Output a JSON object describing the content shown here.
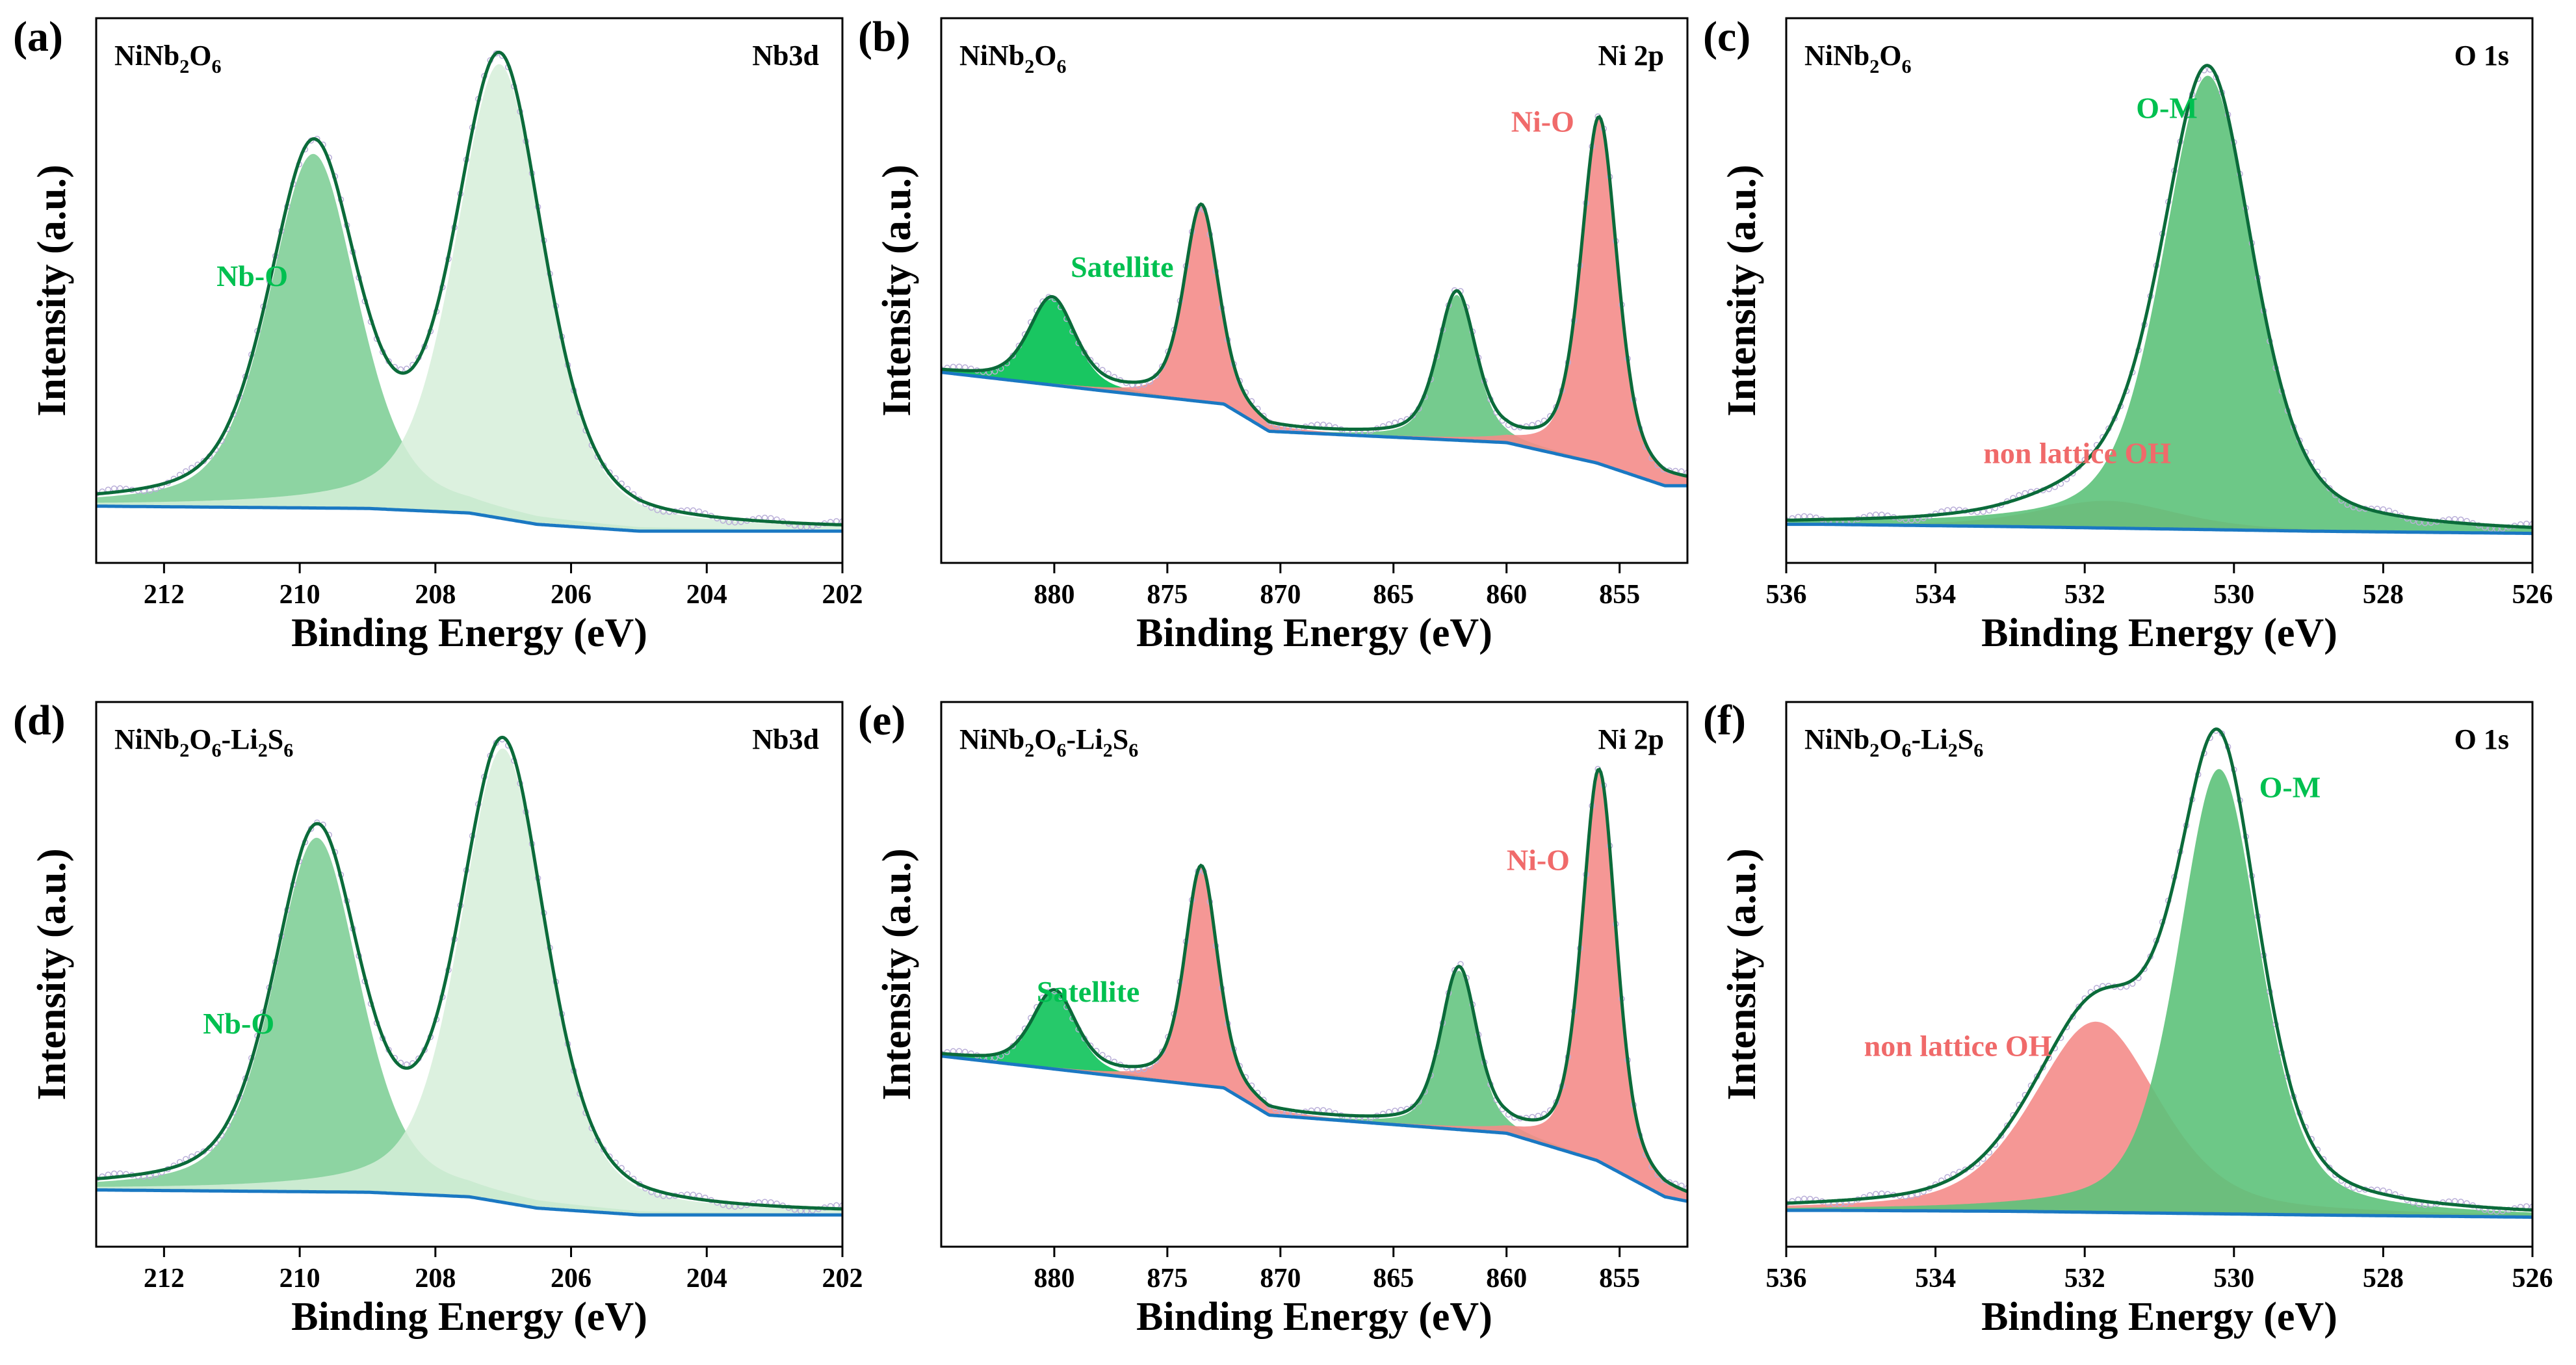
{
  "figure_title": "",
  "colors": {
    "green_dark": "#00C050",
    "green_mid": "#5DC27A",
    "green_light": "#D6EED9",
    "red_fill": "#F48C8A",
    "red_text": "#F06A6A",
    "envelope": "#0B6B3A",
    "baseline": "#1A78C2",
    "raw": "#B9AED8",
    "overlap": "#8E8A4A"
  },
  "chart_data": [
    {
      "panel": "(a)",
      "type": "line",
      "sample": {
        "base": "NiNb",
        "sub1": "2",
        "mid": "O",
        "sub2": "6",
        "tail": "",
        "sub3": ""
      },
      "region": "Nb3d",
      "xlabel": "Binding Energy (eV)",
      "ylabel": "Intensity (a.u.)",
      "xlim": [
        213,
        202
      ],
      "ylim": [
        -0.05,
        1.15
      ],
      "xticks": [
        212,
        210,
        208,
        206,
        204,
        202
      ],
      "xtick_labels": [
        "212",
        "210",
        "208",
        "206",
        "204",
        "202"
      ],
      "baseline": {
        "x": [
          213,
          209,
          207.5,
          206.5,
          205,
          202
        ],
        "y": [
          0.075,
          0.07,
          0.06,
          0.035,
          0.02,
          0.02
        ]
      },
      "peaks": [
        {
          "name": "Nb-O",
          "center": 209.8,
          "height": 0.78,
          "fwhm": 1.55,
          "color": "#5DC27A",
          "opacity": 0.7
        },
        {
          "name": "",
          "center": 207.05,
          "height": 1.0,
          "fwhm": 1.55,
          "color": "#D6EED9",
          "opacity": 0.85
        }
      ],
      "annotations": [
        {
          "text": "Nb-O",
          "x": 210.7,
          "y": 0.56,
          "color": "#00C050"
        }
      ]
    },
    {
      "panel": "(b)",
      "type": "line",
      "sample": {
        "base": "NiNb",
        "sub1": "2",
        "mid": "O",
        "sub2": "6",
        "tail": "",
        "sub3": ""
      },
      "region": "Ni 2p",
      "xlabel": "Binding Energy (eV)",
      "ylabel": "Intensity (a.u.)",
      "xlim": [
        885,
        852
      ],
      "ylim": [
        -0.05,
        1.15
      ],
      "xticks": [
        880,
        875,
        870,
        865,
        860,
        855
      ],
      "xtick_labels": [
        "880",
        "875",
        "870",
        "865",
        "860",
        "855"
      ],
      "baseline": {
        "x": [
          885,
          878,
          872.5,
          870.5,
          860,
          856,
          853,
          852
        ],
        "y": [
          0.37,
          0.33,
          0.3,
          0.24,
          0.215,
          0.17,
          0.12,
          0.12
        ]
      },
      "peaks": [
        {
          "name": "Satellite",
          "center": 880.1,
          "height": 0.19,
          "fwhm": 2.4,
          "color": "#00C050",
          "opacity": 0.9
        },
        {
          "name": "",
          "center": 873.5,
          "height": 0.43,
          "fwhm": 1.8,
          "color": "#F48C8A",
          "opacity": 0.9
        },
        {
          "name": "",
          "center": 862.2,
          "height": 0.32,
          "fwhm": 2.0,
          "color": "#5DC27A",
          "opacity": 0.85
        },
        {
          "name": "Ni-O",
          "center": 855.9,
          "height": 0.76,
          "fwhm": 1.9,
          "color": "#F48C8A",
          "opacity": 0.9
        }
      ],
      "annotations": [
        {
          "text": "Satellite",
          "x": 877,
          "y": 0.58,
          "color": "#00C050"
        },
        {
          "text": "Ni-O",
          "x": 858.4,
          "y": 0.9,
          "color": "#F06A6A"
        }
      ]
    },
    {
      "panel": "(c)",
      "type": "line",
      "sample": {
        "base": "NiNb",
        "sub1": "2",
        "mid": "O",
        "sub2": "6",
        "tail": "",
        "sub3": ""
      },
      "region": "O 1s",
      "xlabel": "Binding Energy (eV)",
      "ylabel": "Intensity (a.u.)",
      "xlim": [
        536,
        526
      ],
      "ylim": [
        -0.05,
        1.15
      ],
      "xticks": [
        536,
        534,
        532,
        530,
        528,
        526
      ],
      "xtick_labels": [
        "536",
        "534",
        "532",
        "530",
        "528",
        "526"
      ],
      "baseline": {
        "x": [
          535.5,
          533,
          531,
          529,
          526
        ],
        "y": [
          0.035,
          0.03,
          0.025,
          0.02,
          0.015
        ]
      },
      "peaks": [
        {
          "name": "non lattice OH",
          "center": 531.7,
          "height": 0.06,
          "fwhm": 2.2,
          "color": "#F48C8A",
          "opacity": 0.9
        },
        {
          "name": "O-M",
          "center": 530.35,
          "height": 1.0,
          "fwhm": 1.45,
          "color": "#5DC27A",
          "opacity": 0.9
        }
      ],
      "annotations": [
        {
          "text": "non lattice OH",
          "x": 532.1,
          "y": 0.17,
          "color": "#F06A6A"
        },
        {
          "text": "O-M",
          "x": 530.9,
          "y": 0.93,
          "color": "#00C050"
        }
      ]
    },
    {
      "panel": "(d)",
      "type": "line",
      "sample": {
        "base": "NiNb",
        "sub1": "2",
        "mid": "O",
        "sub2": "6",
        "tail": "-Li",
        "sub3": "2"
      },
      "sample_suffix": {
        "text": "S",
        "sub": "6"
      },
      "region": "Nb3d",
      "xlabel": "Binding Energy (eV)",
      "ylabel": "Intensity (a.u.)",
      "xlim": [
        213,
        202
      ],
      "ylim": [
        -0.05,
        1.15
      ],
      "xticks": [
        212,
        210,
        208,
        206,
        204,
        202
      ],
      "xtick_labels": [
        "212",
        "210",
        "208",
        "206",
        "204",
        "202"
      ],
      "baseline": {
        "x": [
          213,
          209,
          207.5,
          206.5,
          205,
          202
        ],
        "y": [
          0.075,
          0.07,
          0.06,
          0.035,
          0.02,
          0.02
        ]
      },
      "peaks": [
        {
          "name": "Nb-O",
          "center": 209.75,
          "height": 0.78,
          "fwhm": 1.5,
          "color": "#5DC27A",
          "opacity": 0.7
        },
        {
          "name": "",
          "center": 207.0,
          "height": 1.0,
          "fwhm": 1.5,
          "color": "#D6EED9",
          "opacity": 0.85
        }
      ],
      "annotations": [
        {
          "text": "Nb-O",
          "x": 210.9,
          "y": 0.42,
          "color": "#00C050"
        }
      ]
    },
    {
      "panel": "(e)",
      "type": "line",
      "sample": {
        "base": "NiNb",
        "sub1": "2",
        "mid": "O",
        "sub2": "6",
        "tail": "-Li",
        "sub3": "2"
      },
      "sample_suffix": {
        "text": "S",
        "sub": "6"
      },
      "region": "Ni 2p",
      "xlabel": "Binding Energy (eV)",
      "ylabel": "Intensity (a.u.)",
      "xlim": [
        885,
        852
      ],
      "ylim": [
        -0.05,
        1.15
      ],
      "xticks": [
        880,
        875,
        870,
        865,
        860,
        855
      ],
      "xtick_labels": [
        "880",
        "875",
        "870",
        "865",
        "860",
        "855"
      ],
      "baseline": {
        "x": [
          885,
          878,
          872.5,
          870.5,
          860,
          856,
          853,
          852
        ],
        "y": [
          0.37,
          0.33,
          0.3,
          0.24,
          0.2,
          0.14,
          0.06,
          0.05
        ]
      },
      "peaks": [
        {
          "name": "Satellite",
          "center": 880.0,
          "height": 0.17,
          "fwhm": 2.3,
          "color": "#00C050",
          "opacity": 0.85
        },
        {
          "name": "",
          "center": 873.5,
          "height": 0.48,
          "fwhm": 1.7,
          "color": "#F48C8A",
          "opacity": 0.9
        },
        {
          "name": "",
          "center": 862.1,
          "height": 0.35,
          "fwhm": 1.9,
          "color": "#5DC27A",
          "opacity": 0.85
        },
        {
          "name": "Ni-O",
          "center": 855.9,
          "height": 0.86,
          "fwhm": 1.8,
          "color": "#F48C8A",
          "opacity": 0.9
        }
      ],
      "annotations": [
        {
          "text": "Satellite",
          "x": 878.5,
          "y": 0.49,
          "color": "#00C050"
        },
        {
          "text": "Ni-O",
          "x": 858.6,
          "y": 0.78,
          "color": "#F06A6A"
        }
      ]
    },
    {
      "panel": "(f)",
      "type": "line",
      "sample": {
        "base": "NiNb",
        "sub1": "2",
        "mid": "O",
        "sub2": "6",
        "tail": "-Li",
        "sub3": "2"
      },
      "sample_suffix": {
        "text": "S",
        "sub": "6"
      },
      "region": "O 1s",
      "xlabel": "Binding Energy (eV)",
      "ylabel": "Intensity (a.u.)",
      "xlim": [
        536,
        526
      ],
      "ylim": [
        -0.05,
        1.15
      ],
      "xticks": [
        536,
        534,
        532,
        530,
        528,
        526
      ],
      "xtick_labels": [
        "536",
        "534",
        "532",
        "530",
        "528",
        "526"
      ],
      "baseline": {
        "x": [
          535.3,
          533,
          531,
          529,
          526
        ],
        "y": [
          0.03,
          0.028,
          0.024,
          0.02,
          0.015
        ]
      },
      "peaks": [
        {
          "name": "non lattice OH",
          "center": 531.85,
          "height": 0.42,
          "fwhm": 2.0,
          "color": "#F48C8A",
          "opacity": 0.9
        },
        {
          "name": "O-M",
          "center": 530.2,
          "height": 0.98,
          "fwhm": 1.3,
          "color": "#5DC27A",
          "opacity": 0.9
        }
      ],
      "annotations": [
        {
          "text": "non lattice OH",
          "x": 533.7,
          "y": 0.37,
          "color": "#F06A6A"
        },
        {
          "text": "O-M",
          "x": 529.25,
          "y": 0.94,
          "color": "#00C050"
        }
      ]
    }
  ]
}
